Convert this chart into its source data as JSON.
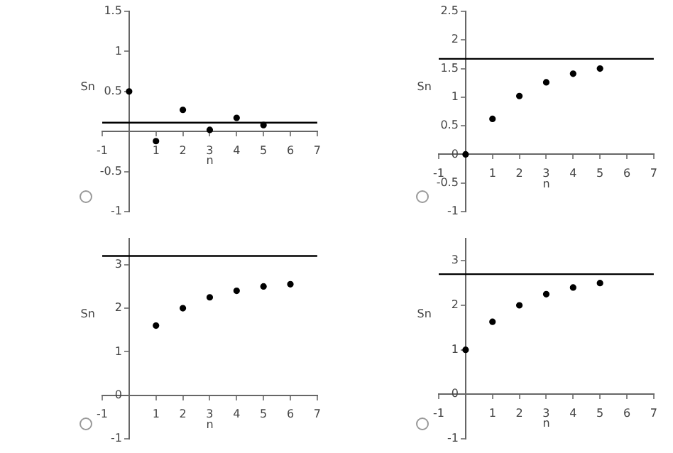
{
  "chart_data": [
    {
      "type": "scatter",
      "xlabel": "n",
      "ylabel": "Sn",
      "x": [
        0,
        1,
        2,
        3,
        4,
        5
      ],
      "series": [
        {
          "color": "#000000",
          "values": [
            0.5,
            -0.12,
            0.27,
            0.02,
            0.17,
            0.08
          ]
        }
      ],
      "xlim": [
        -1,
        7
      ],
      "ylim": [
        -1,
        1.5
      ],
      "xticks": [
        -1,
        1,
        2,
        3,
        4,
        5,
        6,
        7
      ],
      "yticks": [
        -1,
        -0.5,
        0.5,
        1,
        1.5
      ],
      "ref_lines": [
        {
          "axis": "y",
          "value": 0.11,
          "color": "#000000"
        }
      ],
      "marker": "circle",
      "grid": false,
      "legend": false
    },
    {
      "type": "scatter",
      "xlabel": "n",
      "ylabel": "Sn",
      "x": [
        0,
        1,
        2,
        3,
        4,
        5
      ],
      "series": [
        {
          "color": "#000000",
          "values": [
            0,
            0.62,
            1.02,
            1.26,
            1.41,
            1.5
          ]
        }
      ],
      "xlim": [
        -1,
        7
      ],
      "ylim": [
        -1,
        2.5
      ],
      "xticks": [
        -1,
        1,
        2,
        3,
        4,
        5,
        6,
        7
      ],
      "yticks": [
        -1,
        -0.5,
        0,
        0.5,
        1,
        1.5,
        2,
        2.5
      ],
      "ref_lines": [
        {
          "axis": "y",
          "value": 1.67,
          "color": "#000000"
        }
      ],
      "marker": "circle",
      "grid": false,
      "legend": false
    },
    {
      "type": "scatter",
      "xlabel": "n",
      "ylabel": "Sn",
      "x": [
        1,
        2,
        3,
        4,
        5,
        6
      ],
      "series": [
        {
          "color": "#000000",
          "values": [
            1.6,
            2.0,
            2.25,
            2.4,
            2.5,
            2.55
          ]
        }
      ],
      "xlim": [
        -1,
        7
      ],
      "ylim": [
        -1,
        3.6
      ],
      "xticks": [
        -1,
        1,
        2,
        3,
        4,
        5,
        6,
        7
      ],
      "yticks": [
        -1,
        0,
        1,
        2,
        3
      ],
      "ref_lines": [
        {
          "axis": "y",
          "value": 3.2,
          "color": "#000000"
        }
      ],
      "marker": "circle",
      "grid": false,
      "legend": false
    },
    {
      "type": "scatter",
      "xlabel": "n",
      "ylabel": "Sn",
      "x": [
        0,
        1,
        2,
        3,
        4,
        5
      ],
      "series": [
        {
          "color": "#000000",
          "values": [
            1,
            1.63,
            2.0,
            2.25,
            2.4,
            2.5
          ]
        }
      ],
      "xlim": [
        -1,
        7
      ],
      "ylim": [
        -1,
        3.5
      ],
      "xticks": [
        -1,
        1,
        2,
        3,
        4,
        5,
        6,
        7
      ],
      "yticks": [
        -1,
        0,
        1,
        2,
        3
      ],
      "ref_lines": [
        {
          "axis": "y",
          "value": 2.7,
          "color": "#000000"
        }
      ],
      "marker": "circle",
      "grid": false,
      "legend": false
    }
  ]
}
